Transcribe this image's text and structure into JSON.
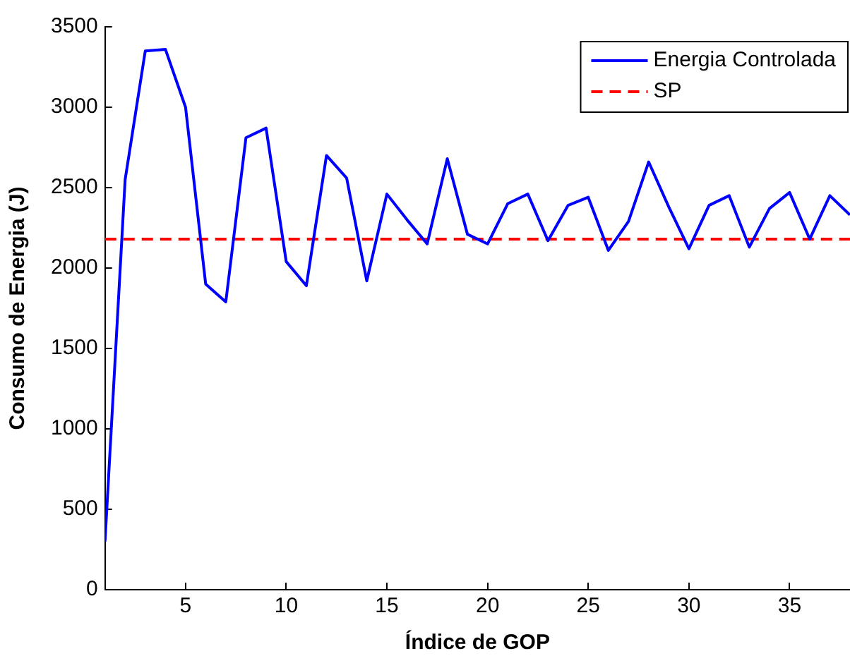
{
  "chart_data": {
    "type": "line",
    "xlabel": "Índice de GOP",
    "ylabel": "Consumo de Energia (J)",
    "x": [
      1,
      2,
      3,
      4,
      5,
      6,
      7,
      8,
      9,
      10,
      11,
      12,
      13,
      14,
      15,
      16,
      17,
      18,
      19,
      20,
      21,
      22,
      23,
      24,
      25,
      26,
      27,
      28,
      29,
      30,
      31,
      32,
      33,
      34,
      35,
      36,
      37,
      38
    ],
    "series": [
      {
        "name": "Energia Controlada",
        "color": "#0000ff",
        "line_style": "solid",
        "values": [
          300,
          2550,
          3350,
          3360,
          3000,
          1900,
          1790,
          2810,
          2870,
          2040,
          1890,
          2700,
          2560,
          1920,
          2460,
          2300,
          2150,
          2680,
          2210,
          2150,
          2400,
          2460,
          2170,
          2390,
          2440,
          2110,
          2290,
          2660,
          2380,
          2120,
          2390,
          2450,
          2130,
          2370,
          2470,
          2180,
          2450,
          2330
        ]
      },
      {
        "name": "SP",
        "color": "#ff0000",
        "line_style": "dashed",
        "x": [
          1,
          38
        ],
        "values": [
          2180,
          2180
        ]
      }
    ],
    "xlim": [
      1,
      38
    ],
    "xticks": [
      5,
      10,
      15,
      20,
      25,
      30,
      35
    ],
    "ylim": [
      0,
      3500
    ],
    "yticks": [
      0,
      500,
      1000,
      1500,
      2000,
      2500,
      3000,
      3500
    ],
    "grid": false,
    "legend": "top right",
    "marker": "none"
  }
}
